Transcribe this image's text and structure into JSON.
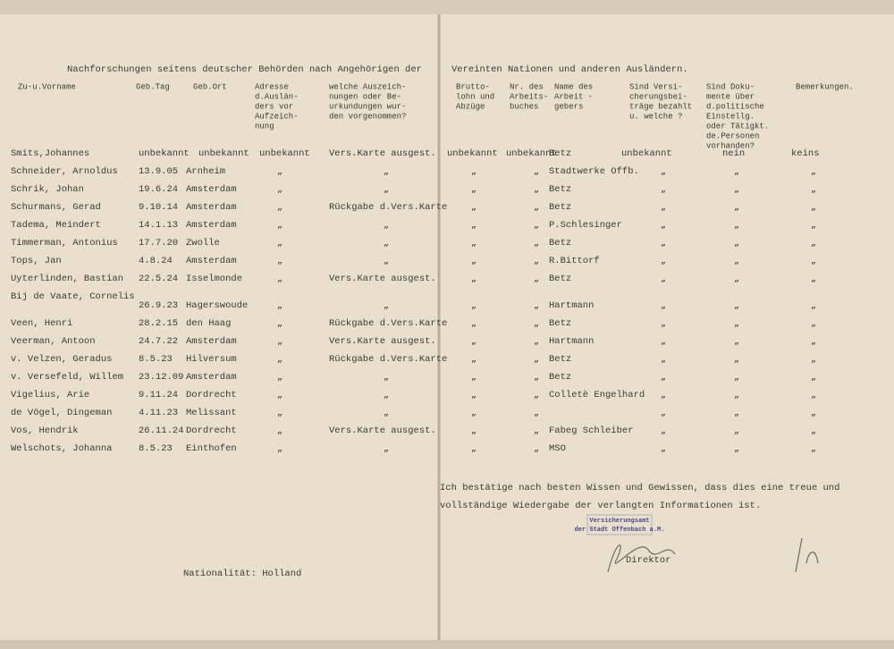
{
  "header": {
    "title_left": "Nachforschungen seitens deutscher Behörden nach Angehörigen der",
    "title_right": "Vereinten Nationen und anderen Ausländern."
  },
  "table": {
    "columns": [
      [
        "Zu-u.Vorname"
      ],
      [
        "Geb.Tag"
      ],
      [
        "Geb.Ort"
      ],
      [
        "Adresse",
        "d.Auslän-",
        "ders vor",
        "Aufzeich-",
        "nung"
      ],
      [
        "welche Auszeich-",
        "nungen oder Be-",
        "urkundungen wur-",
        "den vorgenommen?"
      ],
      [
        "Brutto-",
        "lohn und",
        "Abzüge"
      ],
      [
        "Nr. des",
        "Arbeits-",
        "buches"
      ],
      [
        "Name des",
        "Arbeit -",
        "gebers"
      ],
      [
        "Sind Versi-",
        "cherungsbei-",
        "träge bezahlt",
        "u. welche ?"
      ],
      [
        "Sind Doku-",
        "mente über",
        "d.politische",
        "Einstellg.",
        "oder Tätigkt.",
        "de.Personen",
        "vorhanden?"
      ],
      [
        "Bemerkungen."
      ]
    ],
    "rows": [
      [
        "Smits,Johannes",
        "unbekannt",
        "unbekannt",
        "unbekannt",
        "Vers.Karte ausgest.",
        "unbekannt",
        "unbekannt",
        "Betz",
        "unbekannt",
        "nein",
        "keins"
      ],
      [
        "Schneider, Arnoldus",
        "13.9.05",
        "Arnheim",
        "„",
        "„",
        "„",
        "„",
        "Stadtwerke Offb.",
        "„",
        "„",
        "„"
      ],
      [
        "Schrik, Johan",
        "19.6.24",
        "Amsterdam",
        "„",
        "„",
        "„",
        "„",
        "Betz",
        "„",
        "„",
        "„"
      ],
      [
        "Schurmans, Gerad",
        "9.10.14",
        "Amsterdam",
        "„",
        "Rückgabe d.Vers.Karte",
        "„",
        "„",
        "Betz",
        "„",
        "„",
        "„"
      ],
      [
        "Tadema, Meindert",
        "14.1.13",
        "Amsterdam",
        "„",
        "„",
        "„",
        "„",
        "P.Schlesinger",
        "„",
        "„",
        "„"
      ],
      [
        "Timmerman, Antonius",
        "17.7.20",
        "Zwolle",
        "„",
        "„",
        "„",
        "„",
        "Betz",
        "„",
        "„",
        "„"
      ],
      [
        "Tops, Jan",
        "4.8.24",
        "Amsterdam",
        "„",
        "„",
        "„",
        "„",
        "R.Bittorf",
        "„",
        "„",
        "„"
      ],
      [
        "Uyterlinden, Bastian",
        "22.5.24",
        "Isselmonde",
        "„",
        "Vers.Karte ausgest.",
        "„",
        "„",
        "Betz",
        "„",
        "„",
        "„"
      ],
      [
        "Bij de Vaate, Cornelis",
        "26.9.23",
        "Hagerswoude",
        "„",
        "„",
        "„",
        "„",
        "Hartmann",
        "„",
        "„",
        "„"
      ],
      [
        "Veen, Henri",
        "28.2.15",
        "den Haag",
        "„",
        "Rückgabe d.Vers.Karte",
        "„",
        "„",
        "Betz",
        "„",
        "„",
        "„"
      ],
      [
        "Veerman, Antoon",
        "24.7.22",
        "Amsterdam",
        "„",
        "Vers.Karte ausgest.",
        "„",
        "„",
        "Hartmann",
        "„",
        "„",
        "„"
      ],
      [
        "v. Velzen, Geradus",
        "8.5.23",
        "Hilversum",
        "„",
        "Rückgabe d.Vers.Karte",
        "„",
        "„",
        "Betz",
        "„",
        "„",
        "„"
      ],
      [
        "v. Versefeld, Willem",
        "23.12.09",
        "Amsterdam",
        "„",
        "„",
        "„",
        "„",
        "Betz",
        "„",
        "„",
        "„"
      ],
      [
        "Vigelius, Arie",
        "9.11.24",
        "Dordrecht",
        "„",
        "„",
        "„",
        "„",
        "Colletè Engelhard",
        "„",
        "„",
        "„"
      ],
      [
        "de Vögel, Dingeman",
        "4.11.23",
        "Melissant",
        "„",
        "„",
        "„",
        "„",
        null,
        "„",
        "„",
        "„"
      ],
      [
        "Vos, Hendrik",
        "26.11.24",
        "Dordrecht",
        "„",
        "Vers.Karte ausgest.",
        "„",
        "„",
        "Fabeg Schleiber",
        "„",
        "„",
        "„"
      ],
      [
        "Welschots, Johanna",
        "8.5.23",
        "Einthofen",
        "„",
        "„",
        "„",
        "„",
        "MSO",
        "„",
        "„",
        "„"
      ]
    ]
  },
  "confirmation": [
    "Ich bestätige nach besten Wissen und Gewissen, dass dies eine treue und",
    "vollständige Wiedergabe der verlangten Informationen ist."
  ],
  "stamp": [
    "Versicherungsamt",
    "der Stadt Offenbach a.M."
  ],
  "signature_label": "Direktor",
  "nationality": "Nationalität: Holland"
}
